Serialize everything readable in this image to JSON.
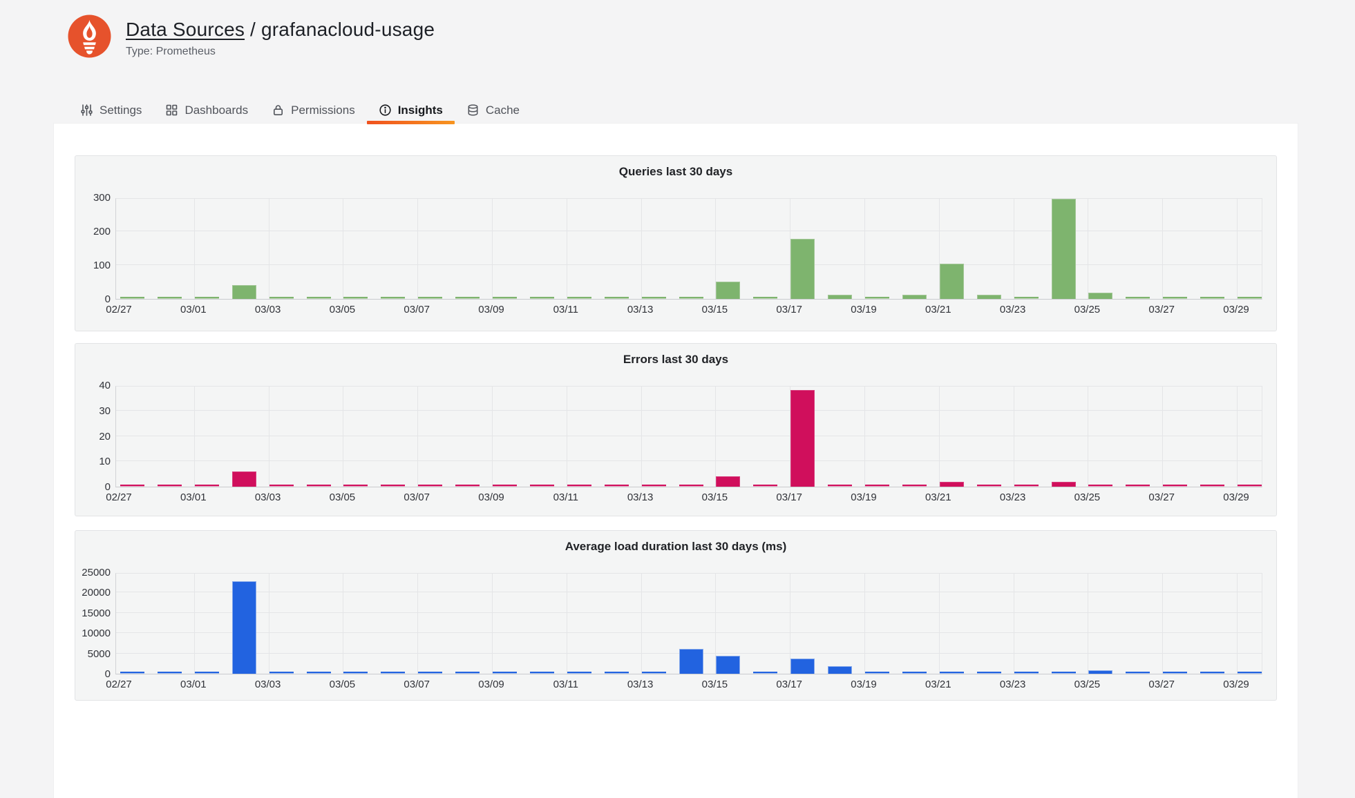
{
  "header": {
    "breadcrumb_link": "Data Sources",
    "breadcrumb_separator": " / ",
    "breadcrumb_current": "grafanacloud-usage",
    "subtitle": "Type: Prometheus",
    "logo": "prometheus-logo",
    "logo_color": "#e6522c"
  },
  "tabs": [
    {
      "label": "Settings",
      "icon": "sliders-icon",
      "active": false
    },
    {
      "label": "Dashboards",
      "icon": "grid-icon",
      "active": false
    },
    {
      "label": "Permissions",
      "icon": "lock-icon",
      "active": false
    },
    {
      "label": "Insights",
      "icon": "info-circle-icon",
      "active": true
    },
    {
      "label": "Cache",
      "icon": "database-icon",
      "active": false
    }
  ],
  "accent": {
    "tab_underline_gradient_start": "#F0511E",
    "tab_underline_gradient_end": "#F79520"
  },
  "chart_data": [
    {
      "type": "bar",
      "title": "Queries last 30 days",
      "color": "#7eb46e",
      "color_border": "#a3c797",
      "color_light": "#bdd7b4",
      "ylim": [
        0,
        300
      ],
      "yticks": [
        0,
        100,
        200,
        300
      ],
      "xtick_every": 2,
      "grid": true,
      "legend": "none",
      "categories": [
        "02/27",
        "02/28",
        "03/01",
        "03/02",
        "03/03",
        "03/04",
        "03/05",
        "03/06",
        "03/07",
        "03/08",
        "03/09",
        "03/10",
        "03/11",
        "03/12",
        "03/13",
        "03/14",
        "03/15",
        "03/16",
        "03/17",
        "03/18",
        "03/19",
        "03/20",
        "03/21",
        "03/22",
        "03/23",
        "03/24",
        "03/25",
        "03/26",
        "03/27",
        "03/28",
        "03/29"
      ],
      "values": [
        2,
        2,
        2,
        40,
        2,
        2,
        2,
        2,
        2,
        2,
        2,
        2,
        2,
        2,
        2,
        3,
        50,
        3,
        178,
        12,
        3,
        12,
        105,
        13,
        8,
        295,
        18,
        2,
        2,
        2,
        8
      ]
    },
    {
      "type": "bar",
      "title": "Errors last 30 days",
      "color": "#d00f5c",
      "color_border": "#d93f7e",
      "color_light": "#eea3c2",
      "ylim": [
        0,
        40
      ],
      "yticks": [
        0,
        10,
        20,
        30,
        40
      ],
      "xtick_every": 2,
      "grid": true,
      "legend": "none",
      "categories": [
        "02/27",
        "02/28",
        "03/01",
        "03/02",
        "03/03",
        "03/04",
        "03/05",
        "03/06",
        "03/07",
        "03/08",
        "03/09",
        "03/10",
        "03/11",
        "03/12",
        "03/13",
        "03/14",
        "03/15",
        "03/16",
        "03/17",
        "03/18",
        "03/19",
        "03/20",
        "03/21",
        "03/22",
        "03/23",
        "03/24",
        "03/25",
        "03/26",
        "03/27",
        "03/28",
        "03/29"
      ],
      "values": [
        0.3,
        0.3,
        0.3,
        6,
        0.3,
        0.3,
        0.3,
        0.3,
        0.3,
        0.3,
        0.3,
        0.3,
        0.3,
        0.3,
        0.3,
        0.3,
        4,
        0.3,
        38,
        0.3,
        0.3,
        0.3,
        2,
        0.3,
        0.3,
        2,
        0.3,
        0.3,
        0.3,
        0.3,
        0.3
      ]
    },
    {
      "type": "bar",
      "title": "Average load duration last 30 days (ms)",
      "color": "#2263e0",
      "color_border": "#89abeb",
      "color_light": "#a9c3f0",
      "ylim": [
        0,
        25000
      ],
      "yticks": [
        0,
        5000,
        10000,
        15000,
        20000,
        25000
      ],
      "xtick_every": 2,
      "grid": true,
      "legend": "none",
      "categories": [
        "02/27",
        "02/28",
        "03/01",
        "03/02",
        "03/03",
        "03/04",
        "03/05",
        "03/06",
        "03/07",
        "03/08",
        "03/09",
        "03/10",
        "03/11",
        "03/12",
        "03/13",
        "03/14",
        "03/15",
        "03/16",
        "03/17",
        "03/18",
        "03/19",
        "03/20",
        "03/21",
        "03/22",
        "03/23",
        "03/24",
        "03/25",
        "03/26",
        "03/27",
        "03/28",
        "03/29"
      ],
      "values": [
        150,
        150,
        200,
        22800,
        150,
        150,
        150,
        150,
        200,
        150,
        150,
        150,
        150,
        200,
        200,
        6200,
        4500,
        300,
        3700,
        1800,
        250,
        700,
        750,
        650,
        400,
        550,
        900,
        200,
        250,
        200,
        550
      ]
    }
  ]
}
